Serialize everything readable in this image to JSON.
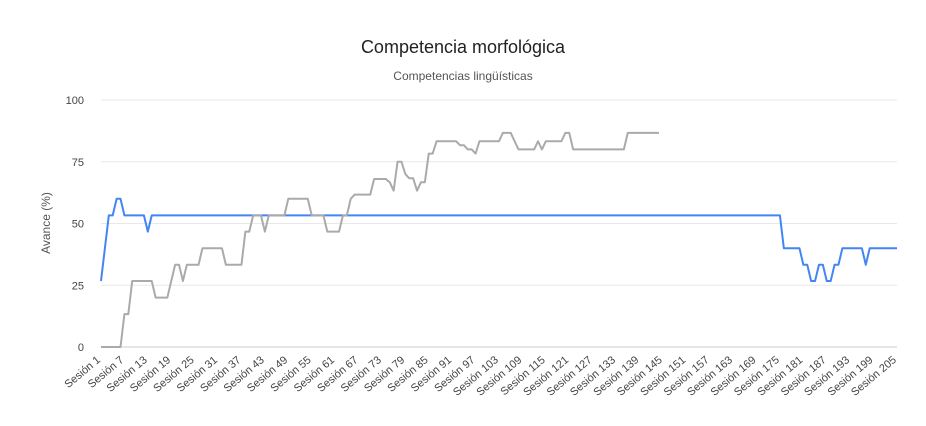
{
  "chart_data": {
    "type": "line",
    "title": "Competencia morfológica",
    "subtitle": "Competencias lingüísticas",
    "y_label": "Avance (%)",
    "ylim": [
      0,
      100
    ],
    "yticks": [
      0,
      25,
      50,
      75,
      100
    ],
    "grid": true,
    "categories": [
      "Sesión 1",
      null,
      null,
      null,
      null,
      null,
      "Sesión 7",
      null,
      null,
      null,
      null,
      null,
      "Sesión 13",
      null,
      null,
      null,
      null,
      null,
      "Sesión 19",
      null,
      null,
      null,
      null,
      null,
      "Sesión 25",
      null,
      null,
      null,
      null,
      null,
      "Sesión 31",
      null,
      null,
      null,
      null,
      null,
      "Sesión 37",
      null,
      null,
      null,
      null,
      null,
      "Sesión 43",
      null,
      null,
      null,
      null,
      null,
      "Sesión 49",
      null,
      null,
      null,
      null,
      null,
      "Sesión 55",
      null,
      null,
      null,
      null,
      null,
      "Sesión 61",
      null,
      null,
      null,
      null,
      null,
      "Sesión 67",
      null,
      null,
      null,
      null,
      null,
      "Sesión 73",
      null,
      null,
      null,
      null,
      null,
      "Sesión 79",
      null,
      null,
      null,
      null,
      null,
      "Sesión 85",
      null,
      null,
      null,
      null,
      null,
      "Sesión 91",
      null,
      null,
      null,
      null,
      null,
      "Sesión 97",
      null,
      null,
      null,
      null,
      null,
      "Sesión 103",
      null,
      null,
      null,
      null,
      null,
      "Sesión 109",
      null,
      null,
      null,
      null,
      null,
      "Sesión 115",
      null,
      null,
      null,
      null,
      null,
      "Sesión 121",
      null,
      null,
      null,
      null,
      null,
      "Sesión 127",
      null,
      null,
      null,
      null,
      null,
      "Sesión 133",
      null,
      null,
      null,
      null,
      null,
      "Sesión 139",
      null,
      null,
      null,
      null,
      null,
      "Sesión 145",
      null,
      null,
      null,
      null,
      null,
      "Sesión 151",
      null,
      null,
      null,
      null,
      null,
      "Sesión 157",
      null,
      null,
      null,
      null,
      null,
      "Sesión 163",
      null,
      null,
      null,
      null,
      null,
      "Sesión 169",
      null,
      null,
      null,
      null,
      null,
      "Sesión 175",
      null,
      null,
      null,
      null,
      null,
      "Sesión 181",
      null,
      null,
      null,
      null,
      null,
      "Sesión 187",
      null,
      null,
      null,
      null,
      null,
      "Sesión 193",
      null,
      null,
      null,
      null,
      null,
      "Sesión 199",
      null,
      null,
      null,
      null,
      null,
      "Sesión 205"
    ],
    "series": [
      {
        "color": "#4285f4",
        "values": [
          26.7,
          40,
          53.3,
          53.3,
          60,
          60,
          53.3,
          53.3,
          53.3,
          53.3,
          53.3,
          53.3,
          46.7,
          53.3,
          53.3,
          53.3,
          53.3,
          53.3,
          53.3,
          53.3,
          53.3,
          53.3,
          53.3,
          53.3,
          53.3,
          53.3,
          53.3,
          53.3,
          53.3,
          53.3,
          53.3,
          53.3,
          53.3,
          53.3,
          53.3,
          53.3,
          53.3,
          53.3,
          53.3,
          53.3,
          53.3,
          53.3,
          53.3,
          53.3,
          53.3,
          53.3,
          53.3,
          53.3,
          53.3,
          53.3,
          53.3,
          53.3,
          53.3,
          53.3,
          53.3,
          53.3,
          53.3,
          53.3,
          53.3,
          53.3,
          53.3,
          53.3,
          53.3,
          53.3,
          53.3,
          53.3,
          53.3,
          53.3,
          53.3,
          53.3,
          53.3,
          53.3,
          53.3,
          53.3,
          53.3,
          53.3,
          53.3,
          53.3,
          53.3,
          53.3,
          53.3,
          53.3,
          53.3,
          53.3,
          53.3,
          53.3,
          53.3,
          53.3,
          53.3,
          53.3,
          53.3,
          53.3,
          53.3,
          53.3,
          53.3,
          53.3,
          53.3,
          53.3,
          53.3,
          53.3,
          53.3,
          53.3,
          53.3,
          53.3,
          53.3,
          53.3,
          53.3,
          53.3,
          53.3,
          53.3,
          53.3,
          53.3,
          53.3,
          53.3,
          53.3,
          53.3,
          53.3,
          53.3,
          53.3,
          53.3,
          53.3,
          53.3,
          53.3,
          53.3,
          53.3,
          53.3,
          53.3,
          53.3,
          53.3,
          53.3,
          53.3,
          53.3,
          53.3,
          53.3,
          53.3,
          53.3,
          53.3,
          53.3,
          53.3,
          53.3,
          53.3,
          53.3,
          53.3,
          53.3,
          53.3,
          53.3,
          53.3,
          53.3,
          53.3,
          53.3,
          53.3,
          53.3,
          53.3,
          53.3,
          53.3,
          53.3,
          53.3,
          53.3,
          53.3,
          53.3,
          53.3,
          53.3,
          53.3,
          53.3,
          53.3,
          53.3,
          53.3,
          53.3,
          53.3,
          53.3,
          53.3,
          53.3,
          53.3,
          53.3,
          53.3,
          40,
          40,
          40,
          40,
          40,
          33.3,
          33.3,
          26.7,
          26.7,
          33.3,
          33.3,
          26.7,
          26.7,
          33.3,
          33.3,
          40,
          40,
          40,
          40,
          40,
          40,
          33.3,
          40,
          40,
          40,
          40,
          40,
          40,
          40,
          40
        ]
      },
      {
        "color": "#aaaaaa",
        "values": [
          0,
          0,
          0,
          0,
          0,
          0,
          13.3,
          13.3,
          26.7,
          26.7,
          26.7,
          26.7,
          26.7,
          26.7,
          20,
          20,
          20,
          20,
          26.7,
          33.3,
          33.3,
          26.7,
          33.3,
          33.3,
          33.3,
          33.3,
          40,
          40,
          40,
          40,
          40,
          40,
          33.3,
          33.3,
          33.3,
          33.3,
          33.3,
          46.7,
          46.7,
          53.3,
          53.3,
          53.3,
          46.7,
          53.3,
          53.3,
          53.3,
          53.3,
          53.3,
          60,
          60,
          60,
          60,
          60,
          60,
          53.3,
          53.3,
          53.3,
          53.3,
          46.7,
          46.7,
          46.7,
          46.7,
          53.3,
          53.3,
          60,
          61.7,
          61.7,
          61.7,
          61.7,
          61.7,
          68,
          68,
          68,
          68,
          66.7,
          63.3,
          75,
          75,
          70,
          68.3,
          68.3,
          63.3,
          66.7,
          66.7,
          78.3,
          78.3,
          83.3,
          83.3,
          83.3,
          83.3,
          83.3,
          83.3,
          81.7,
          81.7,
          80,
          80,
          78.3,
          83.3,
          83.3,
          83.3,
          83.3,
          83.3,
          83.3,
          86.7,
          86.7,
          86.7,
          83.3,
          80,
          80,
          80,
          80,
          80,
          83.3,
          80,
          83.3,
          83.3,
          83.3,
          83.3,
          83.3,
          86.7,
          86.7,
          80,
          80,
          80,
          80,
          80,
          80,
          80,
          80,
          80,
          80,
          80,
          80,
          80,
          80,
          86.7,
          86.7,
          86.7,
          86.7,
          86.7,
          86.7,
          86.7,
          86.7,
          86.7,
          null,
          null,
          null,
          null,
          null,
          null,
          null,
          null,
          null,
          null,
          null,
          null,
          null,
          null,
          null,
          null,
          null,
          null,
          null,
          null,
          null,
          null,
          null,
          null,
          null,
          null,
          null,
          null,
          null,
          null,
          null,
          null,
          null,
          null,
          null,
          null,
          null,
          null,
          null,
          null,
          null,
          null,
          null,
          null,
          null,
          null,
          null,
          null,
          null,
          null,
          null,
          null,
          null,
          null,
          null,
          null,
          null,
          null,
          null,
          null,
          null
        ]
      }
    ]
  }
}
